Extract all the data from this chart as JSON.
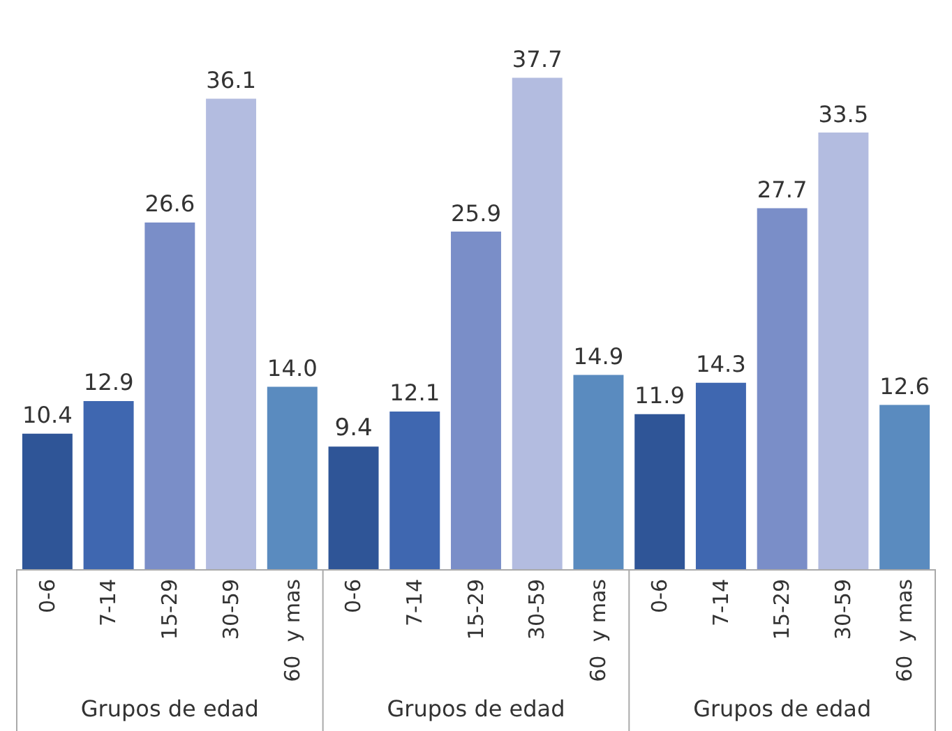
{
  "chart_data": [
    {
      "type": "bar",
      "categories": [
        "0-6",
        "7-14",
        "15-29",
        "30-59",
        "60  y mas"
      ],
      "values": [
        10.4,
        12.9,
        26.6,
        36.1,
        14.0
      ],
      "value_labels": [
        "10.4",
        "12.9",
        "26.6",
        "36.1",
        "14.0"
      ],
      "colors": [
        "#2f5597",
        "#3f67b0",
        "#7a8ec8",
        "#b3bce0",
        "#5a8bbf"
      ],
      "xlabel": "Grupos de edad",
      "tick_labels": "x"
    },
    {
      "type": "bar",
      "categories": [
        "0-6",
        "7-14",
        "15-29",
        "30-59",
        "60  y mas"
      ],
      "values": [
        9.4,
        12.1,
        25.9,
        37.7,
        14.9
      ],
      "value_labels": [
        "9.4",
        "12.1",
        "25.9",
        "37.7",
        "14.9"
      ],
      "colors": [
        "#2f5597",
        "#3f67b0",
        "#7a8ec8",
        "#b3bce0",
        "#5a8bbf"
      ],
      "xlabel": "Grupos de edad",
      "tick_labels": "x"
    },
    {
      "type": "bar",
      "categories": [
        "0-6",
        "7-14",
        "15-29",
        "30-59",
        "60  y mas"
      ],
      "values": [
        11.9,
        14.3,
        27.7,
        33.5,
        12.6
      ],
      "value_labels": [
        "11.9",
        "14.3",
        "27.7",
        "33.5",
        "12.6"
      ],
      "colors": [
        "#2f5597",
        "#3f67b0",
        "#7a8ec8",
        "#b3bce0",
        "#5a8bbf"
      ],
      "xlabel": "Grupos de edad",
      "tick_labels": "x"
    }
  ]
}
